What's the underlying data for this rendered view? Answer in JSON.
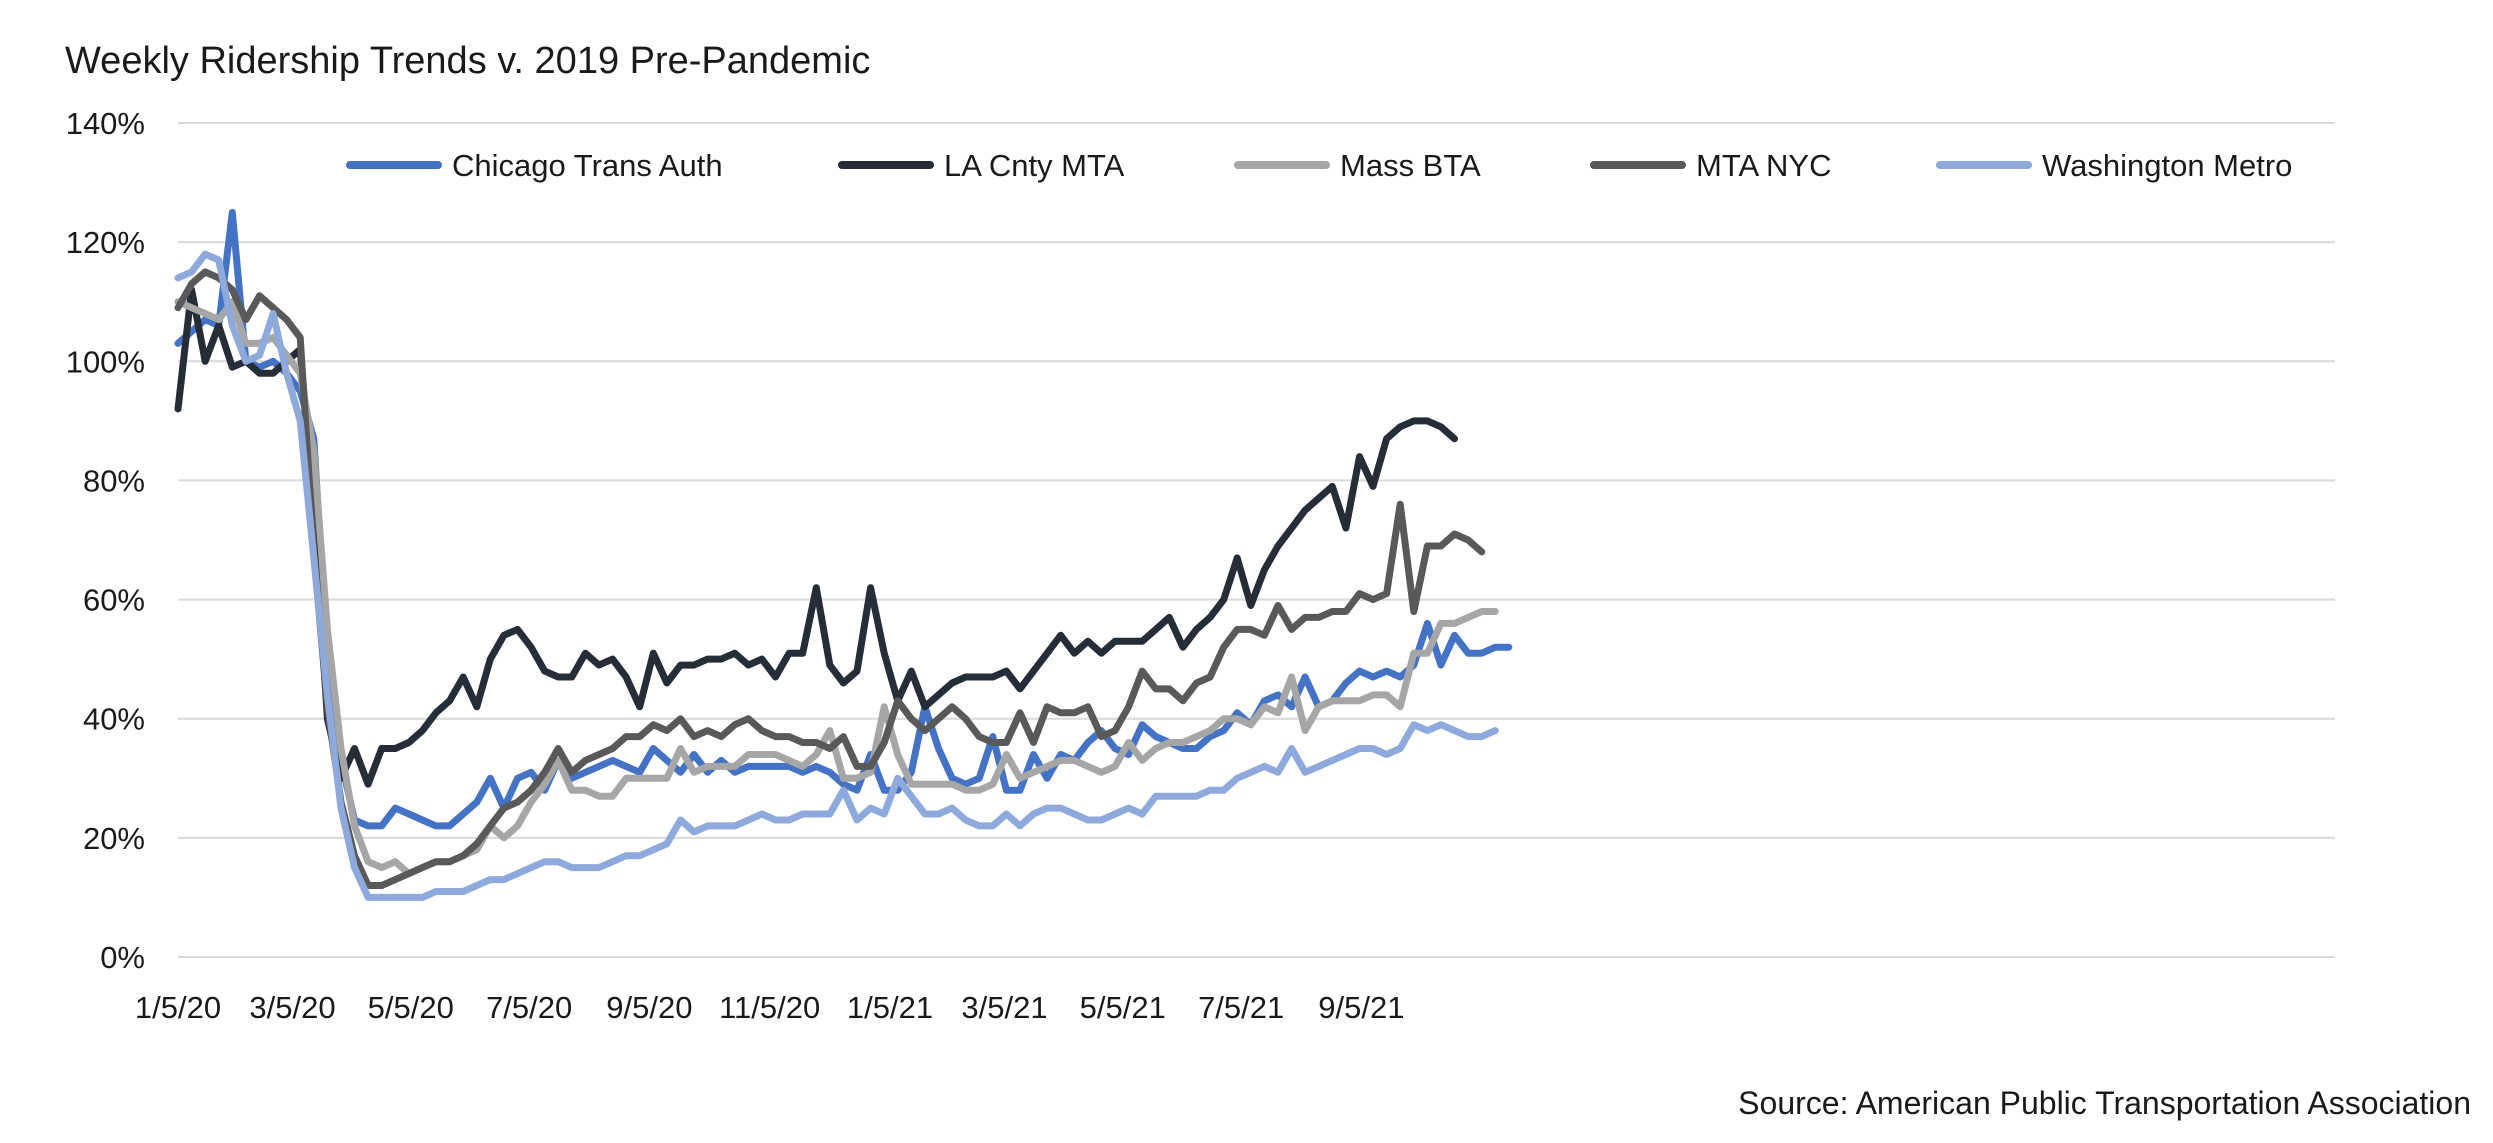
{
  "title": "Weekly Ridership Trends v. 2019 Pre-Pandemic",
  "source": "Source: American Public Transportation Association",
  "chart_data": {
    "type": "line",
    "title": "Weekly Ridership Trends v. 2019 Pre-Pandemic",
    "xlabel": "",
    "ylabel": "",
    "ylim": [
      0,
      140
    ],
    "yticks": [
      0,
      20,
      40,
      60,
      80,
      100,
      120,
      140
    ],
    "ytick_labels": [
      "0%",
      "20%",
      "40%",
      "60%",
      "80%",
      "100%",
      "120%",
      "140%"
    ],
    "xtick_labels": [
      "1/5/20",
      "3/5/20",
      "5/5/20",
      "7/5/20",
      "9/5/20",
      "11/5/20",
      "1/5/21",
      "3/5/21",
      "5/5/21",
      "7/5/21",
      "9/5/21"
    ],
    "xtick_weeks": [
      0,
      8.43,
      17.14,
      25.86,
      34.71,
      43.57,
      52.43,
      60.86,
      69.57,
      78.29,
      87.14
    ],
    "x_start": "1/5/20",
    "x_interval": "weekly",
    "grid": true,
    "legend": "top",
    "series": [
      {
        "name": "Chicago Trans Auth",
        "color": "#4472C4",
        "values": [
          103,
          105,
          107,
          106,
          125,
          100,
          99,
          100,
          98,
          95,
          87,
          50,
          33,
          23,
          22,
          22,
          25,
          24,
          23,
          22,
          22,
          24,
          26,
          30,
          25,
          30,
          31,
          28,
          33,
          30,
          31,
          32,
          33,
          32,
          31,
          35,
          33,
          31,
          34,
          31,
          33,
          31,
          32,
          32,
          32,
          32,
          31,
          32,
          31,
          29,
          28,
          34,
          28,
          28,
          31,
          42,
          35,
          30,
          29,
          30,
          37,
          28,
          28,
          34,
          30,
          34,
          33,
          36,
          38,
          35,
          34,
          39,
          37,
          36,
          35,
          35,
          37,
          38,
          41,
          39,
          43,
          44,
          42,
          47,
          42,
          43,
          46,
          48,
          47,
          48,
          47,
          49,
          56,
          49,
          54,
          51,
          51,
          52,
          52
        ]
      },
      {
        "name": "LA Cnty MTA",
        "color": "#252D38",
        "values": [
          92,
          112,
          100,
          106,
          99,
          100,
          98,
          98,
          100,
          102,
          75,
          40,
          30,
          35,
          29,
          35,
          35,
          36,
          38,
          41,
          43,
          47,
          42,
          50,
          54,
          55,
          52,
          48,
          47,
          47,
          51,
          49,
          50,
          47,
          42,
          51,
          46,
          49,
          49,
          50,
          50,
          51,
          49,
          50,
          47,
          51,
          51,
          62,
          49,
          46,
          48,
          62,
          51,
          43,
          48,
          42,
          44,
          46,
          47,
          47,
          47,
          48,
          45,
          48,
          51,
          54,
          51,
          53,
          51,
          53,
          53,
          53,
          55,
          57,
          52,
          55,
          57,
          60,
          67,
          59,
          65,
          69,
          72,
          75,
          77,
          79,
          72,
          84,
          79,
          87,
          89,
          90,
          90,
          89,
          87
        ]
      },
      {
        "name": "Mass BTA",
        "color": "#A6A6A6",
        "values": [
          110,
          109,
          108,
          107,
          110,
          103,
          103,
          104,
          101,
          98,
          85,
          55,
          35,
          22,
          16,
          15,
          16,
          14,
          15,
          16,
          16,
          17,
          18,
          22,
          20,
          22,
          26,
          29,
          33,
          28,
          28,
          27,
          27,
          30,
          30,
          30,
          30,
          35,
          31,
          32,
          32,
          32,
          34,
          34,
          34,
          33,
          32,
          34,
          38,
          30,
          30,
          31,
          42,
          34,
          29,
          29,
          29,
          29,
          28,
          28,
          29,
          34,
          30,
          31,
          32,
          33,
          33,
          32,
          31,
          32,
          36,
          33,
          35,
          36,
          36,
          37,
          38,
          40,
          40,
          39,
          42,
          41,
          47,
          38,
          42,
          43,
          43,
          43,
          44,
          44,
          42,
          51,
          51,
          56,
          56,
          57,
          58,
          58
        ]
      },
      {
        "name": "MTA NYC",
        "color": "#595959",
        "values": [
          109,
          113,
          115,
          114,
          112,
          107,
          111,
          109,
          107,
          104,
          68,
          42,
          26,
          17,
          12,
          12,
          13,
          14,
          15,
          16,
          16,
          17,
          19,
          22,
          25,
          26,
          28,
          31,
          35,
          31,
          33,
          34,
          35,
          37,
          37,
          39,
          38,
          40,
          37,
          38,
          37,
          39,
          40,
          38,
          37,
          37,
          36,
          36,
          35,
          37,
          32,
          32,
          36,
          43,
          40,
          38,
          40,
          42,
          40,
          37,
          36,
          36,
          41,
          36,
          42,
          41,
          41,
          42,
          37,
          38,
          42,
          48,
          45,
          45,
          43,
          46,
          47,
          52,
          55,
          55,
          54,
          59,
          55,
          57,
          57,
          58,
          58,
          61,
          60,
          61,
          76,
          58,
          69,
          69,
          71,
          70,
          68
        ]
      },
      {
        "name": "Washington Metro",
        "color": "#8EA9DB",
        "values": [
          114,
          115,
          118,
          117,
          106,
          100,
          101,
          108,
          98,
          90,
          67,
          44,
          25,
          15,
          10,
          10,
          10,
          10,
          10,
          11,
          11,
          11,
          12,
          13,
          13,
          14,
          15,
          16,
          16,
          15,
          15,
          15,
          16,
          17,
          17,
          18,
          19,
          23,
          21,
          22,
          22,
          22,
          23,
          24,
          23,
          23,
          24,
          24,
          24,
          28,
          23,
          25,
          24,
          30,
          27,
          24,
          24,
          25,
          23,
          22,
          22,
          24,
          22,
          24,
          25,
          25,
          24,
          23,
          23,
          24,
          25,
          24,
          27,
          27,
          27,
          27,
          28,
          28,
          30,
          31,
          32,
          31,
          35,
          31,
          32,
          33,
          34,
          35,
          35,
          34,
          35,
          39,
          38,
          39,
          38,
          37,
          37,
          38
        ]
      }
    ]
  }
}
